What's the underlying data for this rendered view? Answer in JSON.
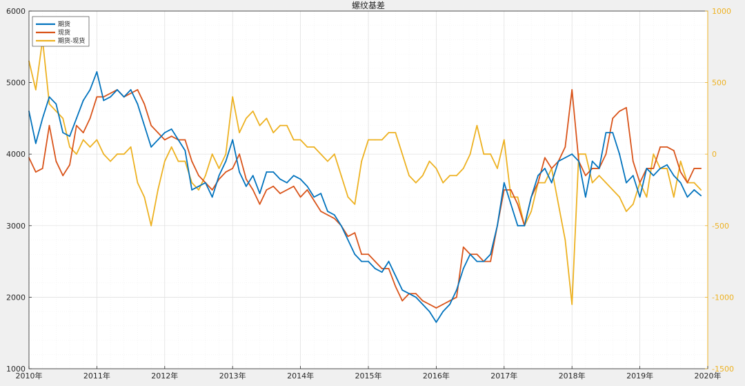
{
  "chart_data": {
    "type": "line",
    "title": "螺纹基差",
    "xlabel": "",
    "ylabel": "",
    "x_ticks": [
      "2010年",
      "2011年",
      "2012年",
      "2013年",
      "2014年",
      "2015年",
      "2016年",
      "2017年",
      "2018年",
      "2019年",
      "2020年"
    ],
    "xlim": [
      2010,
      2020
    ],
    "y_left": {
      "ylim": [
        1000,
        6000
      ],
      "ticks": [
        "1000",
        "2000",
        "3000",
        "4000",
        "5000",
        "6000"
      ]
    },
    "y_right": {
      "ylim": [
        -1500,
        1000
      ],
      "ticks": [
        "-1500",
        "-1000",
        "-500",
        "0",
        "500",
        "1000"
      ]
    },
    "grid": true,
    "legend_position": "top-left",
    "colors": {
      "futures": "#0072BD",
      "spot": "#D95319",
      "basis": "#EDB120"
    },
    "series": [
      {
        "name": "期货",
        "axis": "left",
        "x": [
          2010.0,
          2010.1,
          2010.2,
          2010.3,
          2010.4,
          2010.5,
          2010.6,
          2010.7,
          2010.8,
          2010.9,
          2011.0,
          2011.1,
          2011.2,
          2011.3,
          2011.4,
          2011.5,
          2011.6,
          2011.7,
          2011.8,
          2011.9,
          2012.0,
          2012.1,
          2012.2,
          2012.3,
          2012.4,
          2012.5,
          2012.6,
          2012.7,
          2012.8,
          2012.9,
          2013.0,
          2013.1,
          2013.2,
          2013.3,
          2013.4,
          2013.5,
          2013.6,
          2013.7,
          2013.8,
          2013.9,
          2014.0,
          2014.1,
          2014.2,
          2014.3,
          2014.4,
          2014.5,
          2014.6,
          2014.7,
          2014.8,
          2014.9,
          2015.0,
          2015.1,
          2015.2,
          2015.3,
          2015.4,
          2015.5,
          2015.6,
          2015.7,
          2015.8,
          2015.9,
          2016.0,
          2016.1,
          2016.2,
          2016.3,
          2016.4,
          2016.5,
          2016.6,
          2016.7,
          2016.8,
          2016.9,
          2017.0,
          2017.1,
          2017.2,
          2017.3,
          2017.4,
          2017.5,
          2017.6,
          2017.7,
          2017.8,
          2017.9,
          2018.0,
          2018.1,
          2018.2,
          2018.3,
          2018.4,
          2018.5,
          2018.6,
          2018.7,
          2018.8,
          2018.9,
          2019.0,
          2019.1,
          2019.2,
          2019.3,
          2019.4,
          2019.5,
          2019.6,
          2019.7,
          2019.8,
          2019.9
        ],
        "values": [
          4600,
          4150,
          4500,
          4800,
          4700,
          4300,
          4250,
          4500,
          4750,
          4900,
          5150,
          4750,
          4800,
          4900,
          4800,
          4900,
          4700,
          4400,
          4100,
          4200,
          4300,
          4350,
          4200,
          4050,
          3500,
          3550,
          3600,
          3400,
          3700,
          3900,
          4200,
          3750,
          3550,
          3700,
          3450,
          3750,
          3750,
          3650,
          3600,
          3700,
          3650,
          3550,
          3400,
          3450,
          3200,
          3150,
          3000,
          2800,
          2600,
          2500,
          2500,
          2400,
          2350,
          2500,
          2300,
          2100,
          2050,
          2000,
          1900,
          1800,
          1650,
          1800,
          1900,
          2100,
          2400,
          2600,
          2500,
          2500,
          2600,
          3000,
          3600,
          3300,
          3000,
          3000,
          3400,
          3700,
          3800,
          3600,
          3900,
          3950,
          4000,
          3900,
          3400,
          3900,
          3800,
          4300,
          4300,
          4000,
          3600,
          3700,
          3400,
          3800,
          3700,
          3800,
          3850,
          3700,
          3600,
          3400,
          3500,
          3420
        ]
      },
      {
        "name": "现货",
        "axis": "left",
        "x": [
          2010.0,
          2010.1,
          2010.2,
          2010.3,
          2010.4,
          2010.5,
          2010.6,
          2010.7,
          2010.8,
          2010.9,
          2011.0,
          2011.1,
          2011.2,
          2011.3,
          2011.4,
          2011.5,
          2011.6,
          2011.7,
          2011.8,
          2011.9,
          2012.0,
          2012.1,
          2012.2,
          2012.3,
          2012.4,
          2012.5,
          2012.6,
          2012.7,
          2012.8,
          2012.9,
          2013.0,
          2013.1,
          2013.2,
          2013.3,
          2013.4,
          2013.5,
          2013.6,
          2013.7,
          2013.8,
          2013.9,
          2014.0,
          2014.1,
          2014.2,
          2014.3,
          2014.4,
          2014.5,
          2014.6,
          2014.7,
          2014.8,
          2014.9,
          2015.0,
          2015.1,
          2015.2,
          2015.3,
          2015.4,
          2015.5,
          2015.6,
          2015.7,
          2015.8,
          2015.9,
          2016.0,
          2016.1,
          2016.2,
          2016.3,
          2016.4,
          2016.5,
          2016.6,
          2016.7,
          2016.8,
          2016.9,
          2017.0,
          2017.1,
          2017.2,
          2017.3,
          2017.4,
          2017.5,
          2017.6,
          2017.7,
          2017.8,
          2017.9,
          2018.0,
          2018.1,
          2018.2,
          2018.3,
          2018.4,
          2018.5,
          2018.6,
          2018.7,
          2018.8,
          2018.9,
          2019.0,
          2019.1,
          2019.2,
          2019.3,
          2019.4,
          2019.5,
          2019.6,
          2019.7,
          2019.8,
          2019.9
        ],
        "values": [
          3950,
          3750,
          3800,
          4400,
          3900,
          3700,
          3850,
          4400,
          4300,
          4500,
          4800,
          4800,
          4850,
          4900,
          4800,
          4850,
          4900,
          4700,
          4400,
          4300,
          4200,
          4250,
          4200,
          4200,
          3900,
          3700,
          3600,
          3500,
          3650,
          3750,
          3800,
          4000,
          3650,
          3500,
          3300,
          3500,
          3550,
          3450,
          3500,
          3550,
          3400,
          3500,
          3350,
          3200,
          3150,
          3100,
          3000,
          2850,
          2900,
          2600,
          2600,
          2500,
          2400,
          2400,
          2150,
          1950,
          2050,
          2050,
          1950,
          1900,
          1850,
          1900,
          1950,
          2000,
          2700,
          2600,
          2600,
          2500,
          2500,
          3000,
          3500,
          3500,
          3300,
          3000,
          3400,
          3600,
          3950,
          3800,
          3900,
          4100,
          4900,
          3900,
          3700,
          3800,
          3800,
          4000,
          4500,
          4600,
          4650,
          3900,
          3600,
          3800,
          3800,
          4100,
          4100,
          4050,
          3750,
          3600,
          3800,
          3800
        ]
      },
      {
        "name": "期货-现货",
        "axis": "right",
        "x": [
          2010.0,
          2010.1,
          2010.2,
          2010.3,
          2010.4,
          2010.5,
          2010.6,
          2010.7,
          2010.8,
          2010.9,
          2011.0,
          2011.1,
          2011.2,
          2011.3,
          2011.4,
          2011.5,
          2011.6,
          2011.7,
          2011.8,
          2011.9,
          2012.0,
          2012.1,
          2012.2,
          2012.3,
          2012.4,
          2012.5,
          2012.6,
          2012.7,
          2012.8,
          2012.9,
          2013.0,
          2013.1,
          2013.2,
          2013.3,
          2013.4,
          2013.5,
          2013.6,
          2013.7,
          2013.8,
          2013.9,
          2014.0,
          2014.1,
          2014.2,
          2014.3,
          2014.4,
          2014.5,
          2014.6,
          2014.7,
          2014.8,
          2014.9,
          2015.0,
          2015.1,
          2015.2,
          2015.3,
          2015.4,
          2015.5,
          2015.6,
          2015.7,
          2015.8,
          2015.9,
          2016.0,
          2016.1,
          2016.2,
          2016.3,
          2016.4,
          2016.5,
          2016.6,
          2016.7,
          2016.8,
          2016.9,
          2017.0,
          2017.1,
          2017.2,
          2017.3,
          2017.4,
          2017.5,
          2017.6,
          2017.7,
          2017.8,
          2017.9,
          2018.0,
          2018.1,
          2018.2,
          2018.3,
          2018.4,
          2018.5,
          2018.6,
          2018.7,
          2018.8,
          2018.9,
          2019.0,
          2019.1,
          2019.2,
          2019.3,
          2019.4,
          2019.5,
          2019.6,
          2019.7,
          2019.8,
          2019.9
        ],
        "values": [
          650,
          450,
          800,
          350,
          300,
          250,
          50,
          0,
          100,
          50,
          100,
          0,
          -50,
          0,
          0,
          50,
          -200,
          -300,
          -500,
          -250,
          -50,
          50,
          -50,
          -50,
          -200,
          -250,
          -150,
          0,
          -100,
          0,
          400,
          150,
          250,
          300,
          200,
          250,
          150,
          200,
          200,
          100,
          100,
          50,
          50,
          0,
          -50,
          0,
          -150,
          -300,
          -350,
          -50,
          100,
          100,
          100,
          150,
          150,
          0,
          -150,
          -200,
          -150,
          -50,
          -100,
          -200,
          -150,
          -150,
          -100,
          0,
          200,
          0,
          0,
          -100,
          100,
          -300,
          -300,
          -500,
          -400,
          -200,
          -200,
          -100,
          -350,
          -600,
          -1050,
          0,
          0,
          -200,
          -150,
          -200,
          -250,
          -300,
          -400,
          -350,
          -200,
          -300,
          0,
          -100,
          -100,
          -300,
          -50,
          -200,
          -200,
          -250
        ]
      }
    ]
  }
}
